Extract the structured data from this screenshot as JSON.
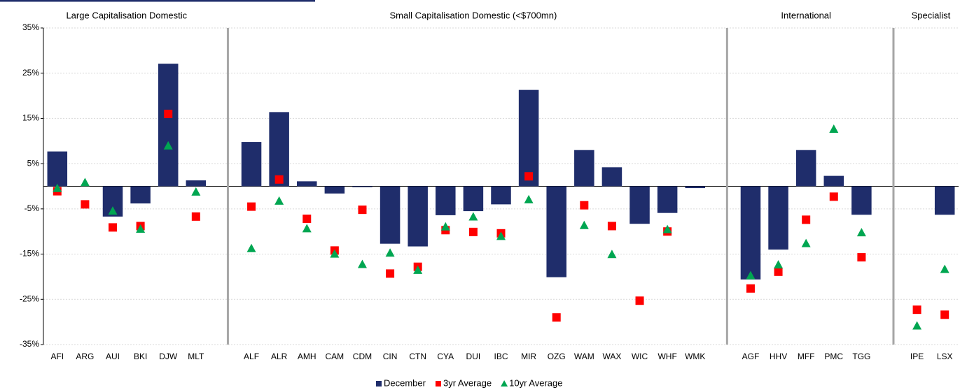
{
  "chart_data": {
    "type": "bar",
    "groups": [
      "Large Capitalisation Domestic",
      "Small Capitalisation Domestic (<$700mn)",
      "International",
      "Specialist"
    ],
    "categories": [
      "AFI",
      "ARG",
      "AUI",
      "BKI",
      "DJW",
      "MLT",
      null,
      "ALF",
      "ALR",
      "AMH",
      "CAM",
      "CDM",
      "CIN",
      "CTN",
      "CYA",
      "DUI",
      "IBC",
      "MIR",
      "OZG",
      "WAM",
      "WAX",
      "WIC",
      "WHF",
      "WMK",
      null,
      "AGF",
      "HHV",
      "MFF",
      "PMC",
      "TGG",
      null,
      "IPE",
      "LSX"
    ],
    "series": [
      {
        "name": "December",
        "marker": "bar",
        "color": "#1f2d6b",
        "values": [
          7.7,
          0,
          -6.7,
          -3.8,
          27.1,
          1.3,
          null,
          9.8,
          16.4,
          1.1,
          -1.6,
          -0.2,
          -12.7,
          -13.3,
          -6.4,
          -5.5,
          -4.0,
          21.3,
          -20.1,
          8.0,
          4.2,
          -8.3,
          -5.9,
          -0.4,
          null,
          -20.6,
          -14.0,
          8.0,
          2.3,
          -6.3,
          null,
          null,
          -6.3
        ]
      },
      {
        "name": "3yr Average",
        "marker": "square",
        "color": "#ff0000",
        "values": [
          -1.1,
          -4.0,
          -9.1,
          -8.8,
          16.0,
          -6.7,
          null,
          -4.5,
          1.5,
          -7.2,
          -14.2,
          -5.2,
          -19.3,
          -17.8,
          -9.7,
          -10.1,
          -10.4,
          2.2,
          -29.0,
          -4.2,
          -8.8,
          -25.3,
          -10.0,
          null,
          null,
          -22.6,
          -18.9,
          -7.4,
          -2.3,
          -15.7,
          null,
          -27.3,
          -28.4
        ]
      },
      {
        "name": "10yr Average",
        "marker": "triangle",
        "color": "#00a651",
        "values": [
          -0.5,
          0.8,
          -5.5,
          -9.5,
          8.9,
          -1.3,
          null,
          -13.8,
          -3.3,
          -9.4,
          -15.0,
          -17.3,
          -14.8,
          -18.6,
          -9.0,
          -6.8,
          -11.1,
          -3.0,
          null,
          -8.7,
          -15.1,
          null,
          -9.6,
          null,
          null,
          -19.8,
          -17.4,
          -12.7,
          12.6,
          -10.3,
          null,
          -30.9,
          -18.4
        ]
      }
    ],
    "ylim": [
      -35,
      35
    ],
    "yticks": [
      {
        "value": 35,
        "label": "35%"
      },
      {
        "value": 25,
        "label": "25%"
      },
      {
        "value": 15,
        "label": "15%"
      },
      {
        "value": 5,
        "label": "5%"
      },
      {
        "value": -5,
        "label": "-5%"
      },
      {
        "value": -15,
        "label": "-15%"
      },
      {
        "value": -25,
        "label": "-25%"
      },
      {
        "value": -35,
        "label": "-35%"
      }
    ],
    "grid": true
  }
}
